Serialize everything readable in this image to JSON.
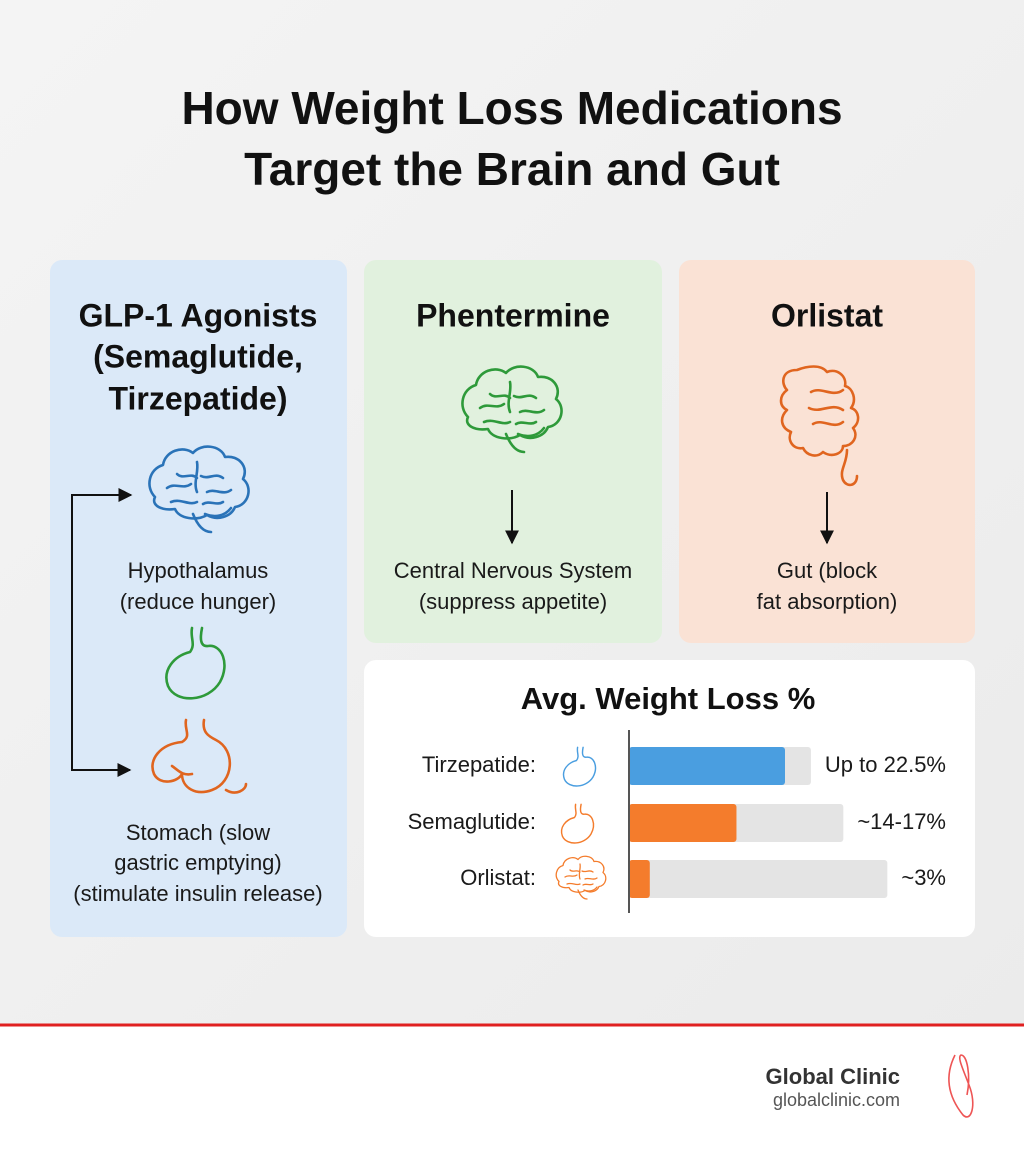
{
  "header": {
    "title_lines": [
      "How Weight Loss Medications",
      "Target the Brain and Gut"
    ]
  },
  "cards": [
    {
      "title_lines": [
        "GLP-1 Agonists",
        "(Semaglutide,",
        "Tirzepatide)"
      ],
      "targets": [
        {
          "label_lines": [
            "Hypothalamus",
            "(reduce hunger)"
          ]
        },
        {
          "label_lines": [
            "Stomach (slow",
            "gastric emptying)",
            "(stimulate insulin release)"
          ]
        }
      ]
    },
    {
      "title": "Phentermine",
      "label_lines": [
        "Central Nervous System",
        "(suppress appetite)"
      ]
    },
    {
      "title": "Orlistat",
      "label_lines": [
        "Gut (block",
        "fat absorption)"
      ]
    }
  ],
  "chart_data": {
    "type": "bar",
    "orientation": "horizontal",
    "title": "Avg. Weight Loss %",
    "categories": [
      "Tirzepatide:",
      "Semaglutide:",
      "Orlistat:"
    ],
    "values": [
      22.5,
      15.5,
      3
    ],
    "value_labels": [
      "Up to 22.5%",
      "~14-17%",
      "~3%"
    ],
    "colors": [
      "#4a9ee0",
      "#f47c2c",
      "#f47c2c"
    ]
  },
  "footer": {
    "brand": "Global Clinic",
    "url": "globalclinic.com"
  }
}
